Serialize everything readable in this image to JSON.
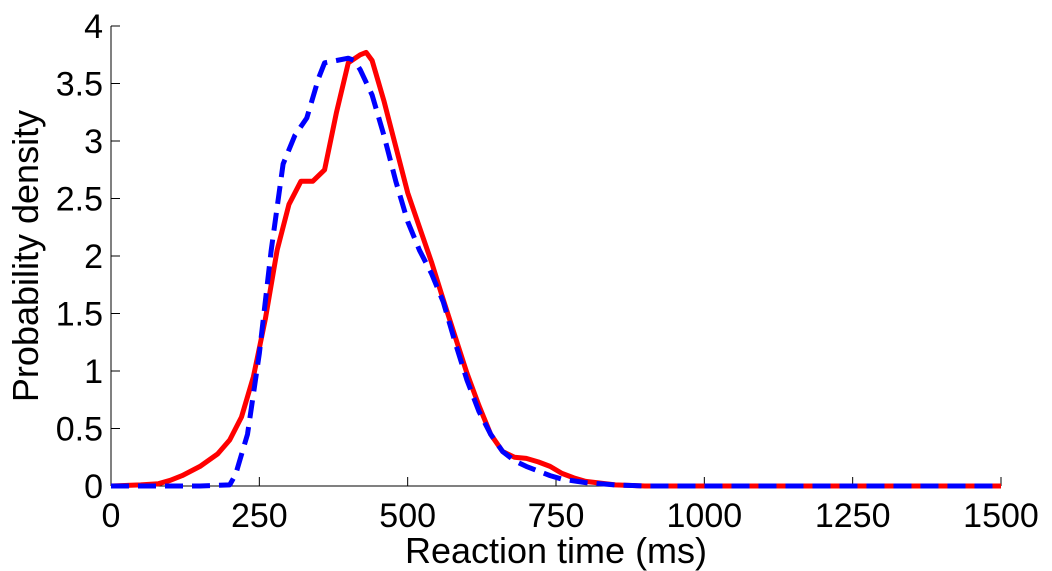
{
  "chart_data": {
    "type": "line",
    "xlabel": "Reaction time (ms)",
    "ylabel": "Probability density",
    "xlim": [
      0,
      1500
    ],
    "ylim": [
      0,
      4
    ],
    "xticks": [
      "0",
      "250",
      "500",
      "750",
      "1000",
      "1250",
      "1500"
    ],
    "yticks": [
      "0",
      "0.5",
      "1",
      "1.5",
      "2",
      "2.5",
      "3",
      "3.5",
      "4"
    ],
    "grid": false,
    "series": [
      {
        "color": "#ff0000",
        "line_style": "solid",
        "x": [
          0,
          50,
          80,
          100,
          120,
          150,
          180,
          200,
          220,
          240,
          260,
          280,
          300,
          320,
          340,
          360,
          380,
          400,
          420,
          430,
          440,
          460,
          480,
          500,
          520,
          540,
          560,
          580,
          600,
          620,
          640,
          660,
          680,
          700,
          720,
          740,
          760,
          780,
          800,
          850,
          900,
          1000,
          1500
        ],
        "y": [
          0.0,
          0.01,
          0.02,
          0.05,
          0.09,
          0.17,
          0.28,
          0.4,
          0.6,
          0.95,
          1.45,
          2.05,
          2.45,
          2.65,
          2.65,
          2.75,
          3.25,
          3.68,
          3.75,
          3.77,
          3.7,
          3.35,
          2.95,
          2.55,
          2.25,
          1.95,
          1.62,
          1.3,
          0.98,
          0.7,
          0.45,
          0.3,
          0.25,
          0.24,
          0.21,
          0.17,
          0.11,
          0.07,
          0.04,
          0.01,
          0.0,
          0.0,
          0.0
        ]
      },
      {
        "color": "#0000ff",
        "line_style": "dashed",
        "x": [
          0,
          150,
          200,
          210,
          230,
          250,
          270,
          290,
          310,
          330,
          350,
          360,
          380,
          400,
          410,
          420,
          440,
          460,
          480,
          500,
          520,
          540,
          560,
          580,
          600,
          620,
          640,
          660,
          680,
          700,
          720,
          740,
          760,
          800,
          850,
          900,
          1000,
          1500
        ],
        "y": [
          0.0,
          0.0,
          0.01,
          0.1,
          0.45,
          1.15,
          2.05,
          2.8,
          3.05,
          3.2,
          3.55,
          3.68,
          3.7,
          3.72,
          3.7,
          3.62,
          3.4,
          3.05,
          2.65,
          2.3,
          2.05,
          1.85,
          1.6,
          1.25,
          0.92,
          0.65,
          0.45,
          0.3,
          0.22,
          0.17,
          0.13,
          0.09,
          0.06,
          0.03,
          0.01,
          0.0,
          0.0,
          0.0
        ]
      }
    ]
  }
}
